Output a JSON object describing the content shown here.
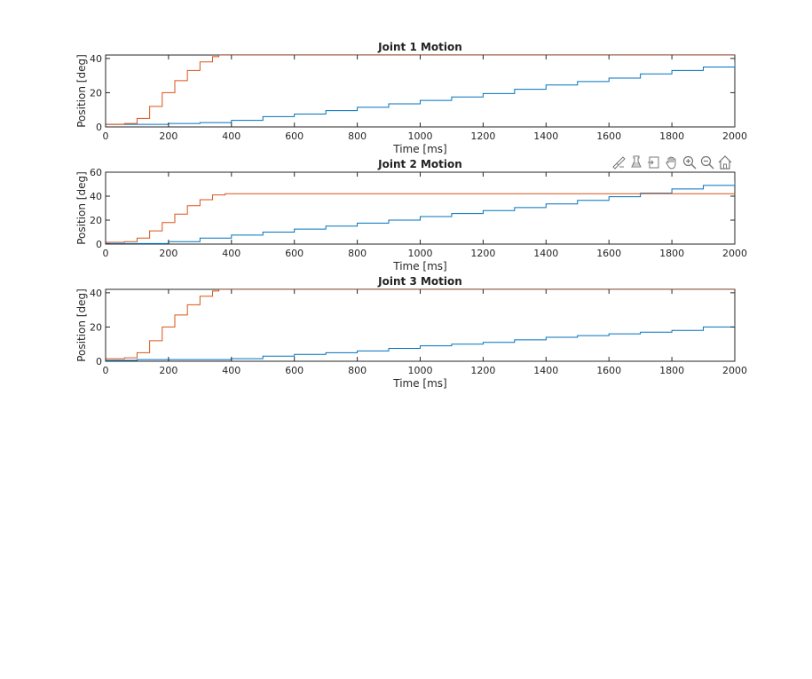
{
  "toolbar": {
    "icons": [
      "brush-icon",
      "data-cursor-icon",
      "restore-view-icon",
      "pan-hand-icon",
      "zoom-in-icon",
      "zoom-out-icon",
      "home-icon"
    ]
  },
  "colors": {
    "series_blue": "#0072BD",
    "series_orange": "#D95319",
    "axes": "#262626"
  },
  "chart_data": [
    {
      "type": "line",
      "title": "Joint 1 Motion",
      "xlabel": "Time [ms]",
      "ylabel": "Position [deg]",
      "xlim": [
        0,
        2000
      ],
      "ylim": [
        0,
        42
      ],
      "xticks": [
        "0",
        "200",
        "400",
        "600",
        "800",
        "1000",
        "1200",
        "1400",
        "1600",
        "1800",
        "2000"
      ],
      "yticks": [
        "0",
        "20",
        "40"
      ],
      "grid": false,
      "series": [
        {
          "color": "#0072BD",
          "step": true,
          "x": [
            0,
            200,
            300,
            400,
            500,
            600,
            700,
            800,
            900,
            1000,
            1100,
            1200,
            1300,
            1400,
            1500,
            1600,
            1700,
            1800,
            1900,
            2000
          ],
          "y": [
            1.5,
            2,
            2.5,
            3.8,
            6,
            7.5,
            9.5,
            11.5,
            13.5,
            15.5,
            17.5,
            19.5,
            22,
            24.5,
            26.5,
            28.5,
            31,
            33,
            35,
            38
          ]
        },
        {
          "color": "#D95319",
          "step": true,
          "x": [
            0,
            60,
            100,
            140,
            180,
            220,
            260,
            300,
            340,
            360,
            380,
            2000
          ],
          "y": [
            1.5,
            2,
            5,
            12,
            20,
            27,
            33,
            38,
            41,
            42,
            42,
            42
          ]
        }
      ]
    },
    {
      "type": "line",
      "title": "Joint 2 Motion",
      "xlabel": "Time [ms]",
      "ylabel": "Position [deg]",
      "xlim": [
        0,
        2000
      ],
      "ylim": [
        0,
        60
      ],
      "xticks": [
        "0",
        "200",
        "400",
        "600",
        "800",
        "1000",
        "1200",
        "1400",
        "1600",
        "1800",
        "2000"
      ],
      "yticks": [
        "0",
        "20",
        "40",
        "60"
      ],
      "grid": false,
      "series": [
        {
          "color": "#0072BD",
          "step": true,
          "x": [
            0,
            150,
            200,
            300,
            400,
            500,
            600,
            700,
            800,
            900,
            1000,
            1100,
            1200,
            1300,
            1400,
            1500,
            1600,
            1700,
            1800,
            1900,
            2000
          ],
          "y": [
            0.5,
            0.5,
            2,
            5,
            7.5,
            10,
            12.5,
            15,
            17.5,
            20,
            23,
            25.5,
            28,
            30.5,
            33.5,
            36.5,
            39.5,
            42.5,
            46,
            49,
            52
          ]
        },
        {
          "color": "#D95319",
          "step": true,
          "x": [
            0,
            60,
            100,
            140,
            180,
            220,
            260,
            300,
            340,
            380,
            2000
          ],
          "y": [
            1.5,
            2,
            5,
            11,
            18,
            25,
            32,
            37,
            41,
            42,
            42
          ]
        }
      ]
    },
    {
      "type": "line",
      "title": "Joint 3 Motion",
      "xlabel": "Time [ms]",
      "ylabel": "Position [deg]",
      "xlim": [
        0,
        2000
      ],
      "ylim": [
        0,
        42
      ],
      "xticks": [
        "0",
        "200",
        "400",
        "600",
        "800",
        "1000",
        "1200",
        "1400",
        "1600",
        "1800",
        "2000"
      ],
      "yticks": [
        "0",
        "20",
        "40"
      ],
      "grid": false,
      "series": [
        {
          "color": "#0072BD",
          "step": true,
          "x": [
            0,
            100,
            200,
            300,
            400,
            500,
            600,
            700,
            800,
            900,
            1000,
            1100,
            1200,
            1300,
            1400,
            1500,
            1600,
            1700,
            1800,
            1900,
            2000
          ],
          "y": [
            0.5,
            1,
            1,
            1,
            1.5,
            3,
            4,
            5,
            6,
            7.5,
            9,
            10,
            11,
            12.5,
            14,
            15,
            16,
            17,
            18,
            20,
            21
          ]
        },
        {
          "color": "#D95319",
          "step": true,
          "x": [
            0,
            60,
            100,
            140,
            180,
            220,
            260,
            300,
            340,
            360,
            380,
            2000
          ],
          "y": [
            1.5,
            2,
            5,
            12,
            20,
            27,
            33,
            38,
            41,
            42,
            42,
            42
          ]
        }
      ]
    }
  ]
}
